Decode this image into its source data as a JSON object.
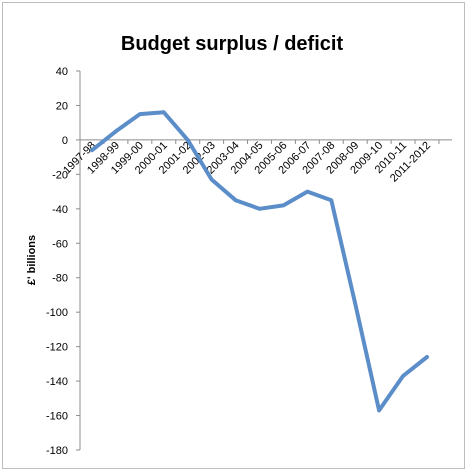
{
  "chart_data": {
    "type": "line",
    "title": "Budget surplus / deficit",
    "ylabel": "£' billions",
    "xlabel": "",
    "categories": [
      "1997-98",
      "1998-99",
      "1999-00",
      "2000-01",
      "2001-02",
      "2002-03",
      "2003-04",
      "2004-05",
      "2005-06",
      "2006-07",
      "2007-08",
      "2008-09",
      "2009-10",
      "2010-11",
      "2011-2012"
    ],
    "series": [
      {
        "values": [
          -6,
          5,
          15,
          16,
          0,
          -23,
          -35,
          -40,
          -38,
          -30,
          -35,
          -95,
          -157,
          -137,
          -126
        ]
      }
    ],
    "ylim": [
      -180,
      40
    ],
    "yticks": [
      40,
      20,
      0,
      -20,
      -40,
      -60,
      -80,
      -100,
      -120,
      -140,
      -160,
      -180
    ],
    "grid": false,
    "legend": "none",
    "line_color": "#5b8ec9"
  }
}
